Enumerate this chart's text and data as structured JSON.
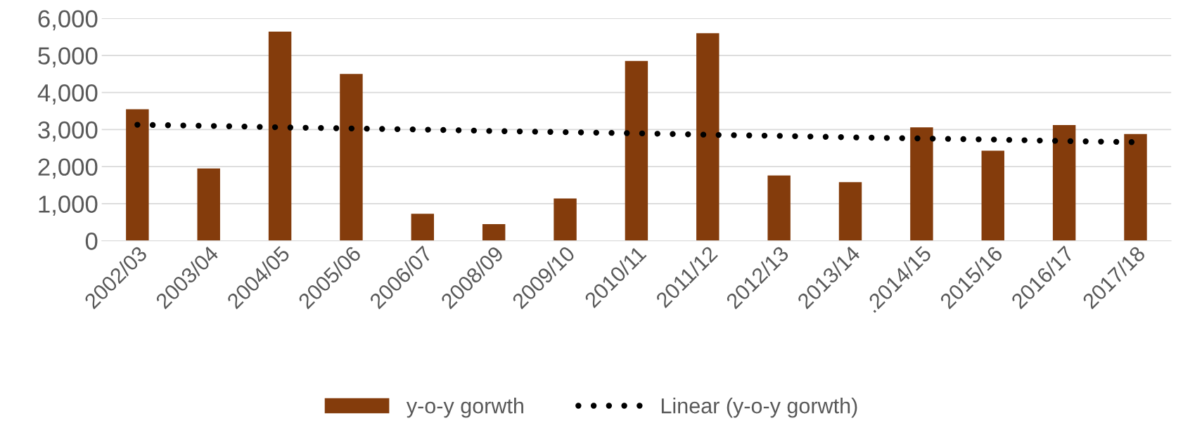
{
  "chart_data": {
    "type": "bar",
    "categories": [
      "2002/03",
      "2003/04",
      "2004/05",
      "2005/06",
      "2006/07",
      "2008/09",
      "2009/10",
      "2010/11",
      "2011/12",
      "2012/13",
      "2013/14",
      ".2014/15",
      "2015/16",
      "2016/17",
      "2017/18"
    ],
    "series": [
      {
        "name": "y-o-y gorwth",
        "color": "#843c0c",
        "values": [
          3550,
          1950,
          5640,
          4500,
          730,
          450,
          1140,
          4850,
          5600,
          1760,
          1580,
          3060,
          2430,
          3120,
          2880
        ]
      },
      {
        "name": "Linear (y-o-y gorwth)",
        "type": "line",
        "color": "#000000",
        "line_style": "dotted",
        "marker": "none",
        "values": [
          3130,
          3100,
          3060,
          3030,
          3000,
          2960,
          2930,
          2900,
          2860,
          2830,
          2790,
          2760,
          2730,
          2690,
          2660
        ]
      }
    ],
    "ylim": [
      0,
      6000
    ],
    "yticks": [
      {
        "value": 0,
        "label": "0"
      },
      {
        "value": 1000,
        "label": "1,000"
      },
      {
        "value": 2000,
        "label": "2,000"
      },
      {
        "value": 3000,
        "label": "3,000"
      },
      {
        "value": 4000,
        "label": "4,000"
      },
      {
        "value": 5000,
        "label": "5,000"
      },
      {
        "value": 6000,
        "label": "6,000"
      }
    ],
    "grid": "y",
    "legend": "bottom"
  }
}
